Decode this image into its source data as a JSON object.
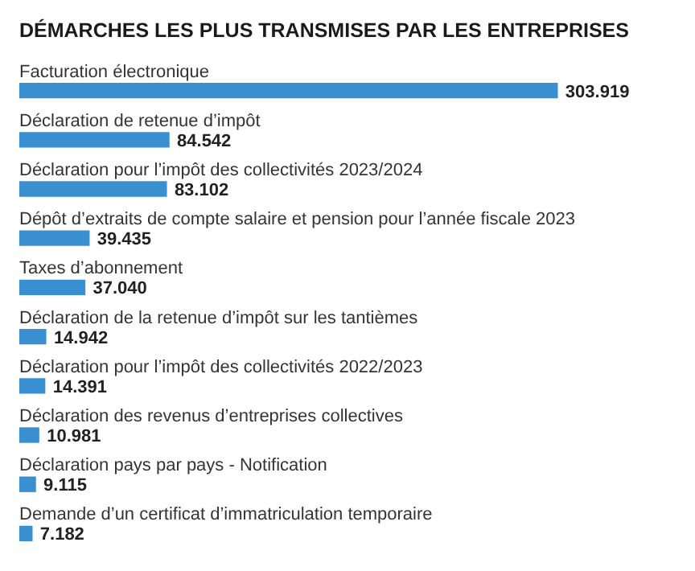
{
  "chart_data": {
    "type": "bar",
    "orientation": "horizontal",
    "title": "DÉMARCHES LES PLUS TRANSMISES PAR LES ENTREPRISES",
    "categories": [
      "Facturation électronique",
      "Déclaration de retenue d’impôt",
      "Déclaration pour l’impôt des collectivités 2023/2024",
      "Dépôt d’extraits de compte salaire et pension pour l’année fiscale 2023",
      "Taxes d’abonnement",
      "Déclaration de la retenue d’impôt sur les tantièmes",
      "Déclaration pour l’impôt des collectivités 2022/2023",
      "Déclaration des revenus d’entreprises collectives",
      "Déclaration pays par pays - Notification",
      "Demande d’un certificat d’immatriculation temporaire"
    ],
    "values": [
      303919,
      84542,
      83102,
      39435,
      37040,
      14942,
      14391,
      10981,
      9115,
      7182
    ],
    "value_labels": [
      "303.919",
      "84.542",
      "83.102",
      "39.435",
      "37.040",
      "14.942",
      "14.391",
      "10.981",
      "9.115",
      "7.182"
    ],
    "color": "#3a8fd0"
  }
}
